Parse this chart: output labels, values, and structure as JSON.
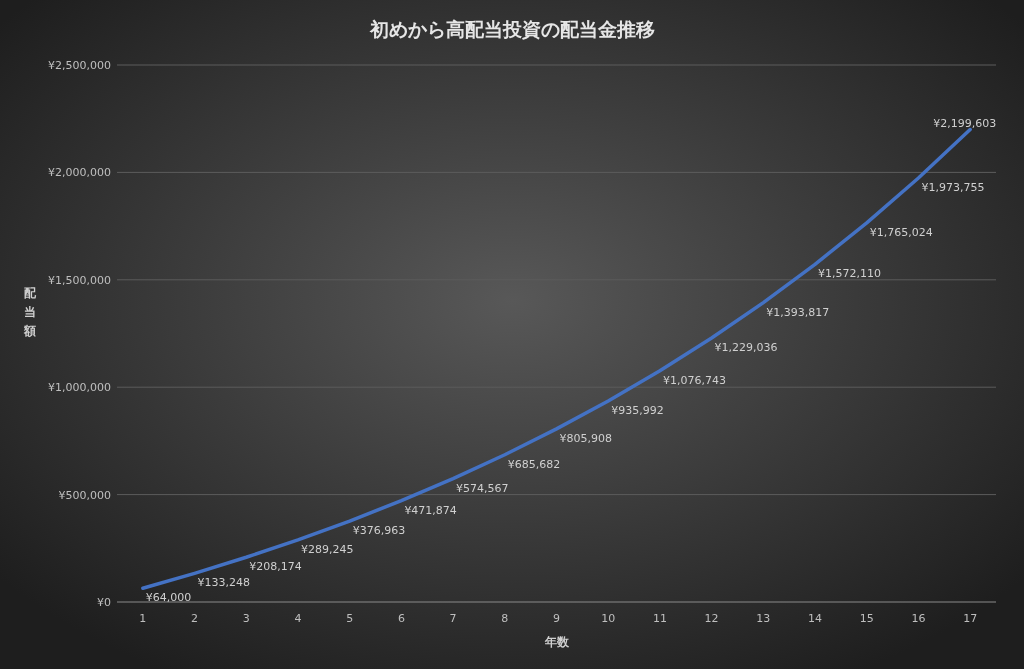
{
  "chart_data": {
    "type": "line",
    "title": "初めから高配当投資の配当金推移",
    "xlabel": "年数",
    "ylabel": "配当額",
    "categories": [
      "1",
      "2",
      "3",
      "4",
      "5",
      "6",
      "7",
      "8",
      "9",
      "10",
      "11",
      "12",
      "13",
      "14",
      "15",
      "16",
      "17"
    ],
    "series": [
      {
        "color": "#4472c4",
        "values": [
          64000,
          133248,
          208174,
          289245,
          376963,
          471874,
          574567,
          685682,
          805908,
          935992,
          1076743,
          1229036,
          1393817,
          1572110,
          1765024,
          1973755,
          2199603
        ]
      }
    ],
    "value_labels": [
      "¥64,000",
      "¥133,248",
      "¥208,174",
      "¥289,245",
      "¥376,963",
      "¥471,874",
      "¥574,567",
      "¥685,682",
      "¥805,908",
      "¥935,992",
      "¥1,076,743",
      "¥1,229,036",
      "¥1,393,817",
      "¥1,572,110",
      "¥1,765,024",
      "¥1,973,755",
      "¥2,199,603"
    ],
    "ylim": [
      0,
      2500000
    ],
    "yticks": [
      {
        "value": 0,
        "label": "¥0"
      },
      {
        "value": 500000,
        "label": "¥500,000"
      },
      {
        "value": 1000000,
        "label": "¥1,000,000"
      },
      {
        "value": 1500000,
        "label": "¥1,500,000"
      },
      {
        "value": 2000000,
        "label": "¥2,000,000"
      },
      {
        "value": 2500000,
        "label": "¥2,500,000"
      }
    ],
    "grid": "y",
    "marker": "none",
    "line_style": "solid"
  }
}
